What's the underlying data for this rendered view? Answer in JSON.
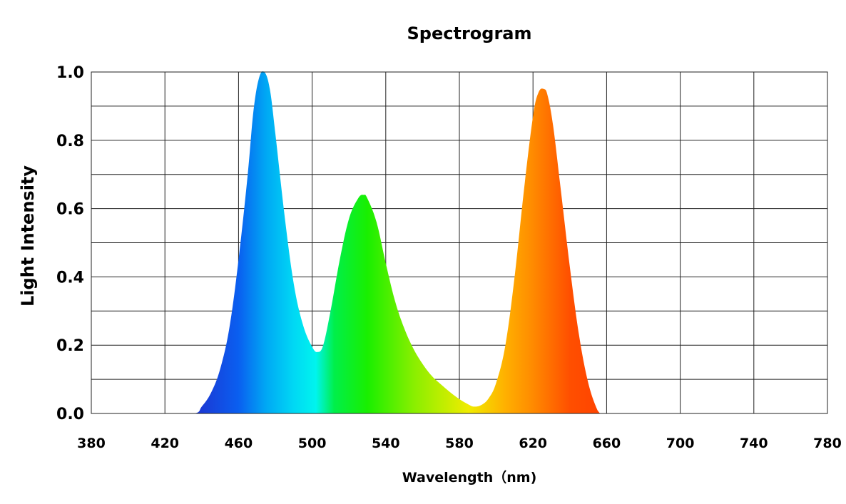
{
  "chart_data": {
    "type": "area",
    "title": "Spectrogram",
    "xlabel": "Wavelength（nm)",
    "ylabel": "Light Intensity",
    "xlim": [
      380,
      780
    ],
    "ylim": [
      0.0,
      1.0
    ],
    "x_ticks": [
      "380",
      "420",
      "460",
      "500",
      "540",
      "580",
      "620",
      "660",
      "700",
      "740",
      "780"
    ],
    "y_ticks": [
      "0.0",
      "0.2",
      "0.4",
      "0.6",
      "0.8",
      "1.0"
    ],
    "grid": true,
    "legend": "none",
    "series": [
      {
        "x": [
          380,
          420,
          436,
          440,
          445,
          450,
          455,
          460,
          465,
          468,
          471,
          474,
          477,
          480,
          485,
          490,
          495,
          500,
          503,
          506,
          510,
          515,
          520,
          525,
          528,
          530,
          535,
          540,
          545,
          550,
          555,
          560,
          565,
          570,
          575,
          580,
          585,
          588,
          592,
          596,
          600,
          605,
          610,
          615,
          620,
          623,
          626,
          628,
          631,
          635,
          640,
          645,
          650,
          655,
          657,
          660,
          700,
          740,
          780
        ],
        "y": [
          0.0,
          0.0,
          0.0,
          0.02,
          0.06,
          0.13,
          0.25,
          0.45,
          0.7,
          0.88,
          0.98,
          1.0,
          0.95,
          0.82,
          0.58,
          0.38,
          0.26,
          0.195,
          0.18,
          0.2,
          0.3,
          0.45,
          0.57,
          0.63,
          0.64,
          0.63,
          0.56,
          0.44,
          0.33,
          0.25,
          0.19,
          0.145,
          0.11,
          0.085,
          0.062,
          0.042,
          0.026,
          0.02,
          0.025,
          0.045,
          0.09,
          0.2,
          0.4,
          0.65,
          0.87,
          0.94,
          0.95,
          0.93,
          0.84,
          0.66,
          0.43,
          0.23,
          0.09,
          0.01,
          0.0,
          0.0,
          0.0,
          0.0,
          0.0
        ]
      }
    ],
    "gradient_colors": [
      {
        "nm": 440,
        "color": "#1a3bd6"
      },
      {
        "nm": 460,
        "color": "#0a5ff0"
      },
      {
        "nm": 475,
        "color": "#00a8f4"
      },
      {
        "nm": 490,
        "color": "#00d8f4"
      },
      {
        "nm": 502,
        "color": "#00f4ee"
      },
      {
        "nm": 512,
        "color": "#00ef4a"
      },
      {
        "nm": 530,
        "color": "#19ef00"
      },
      {
        "nm": 555,
        "color": "#88ef00"
      },
      {
        "nm": 585,
        "color": "#f0ec00"
      },
      {
        "nm": 605,
        "color": "#ffb000"
      },
      {
        "nm": 620,
        "color": "#ff8a00"
      },
      {
        "nm": 640,
        "color": "#ff4f00"
      },
      {
        "nm": 657,
        "color": "#ff4300"
      }
    ]
  }
}
